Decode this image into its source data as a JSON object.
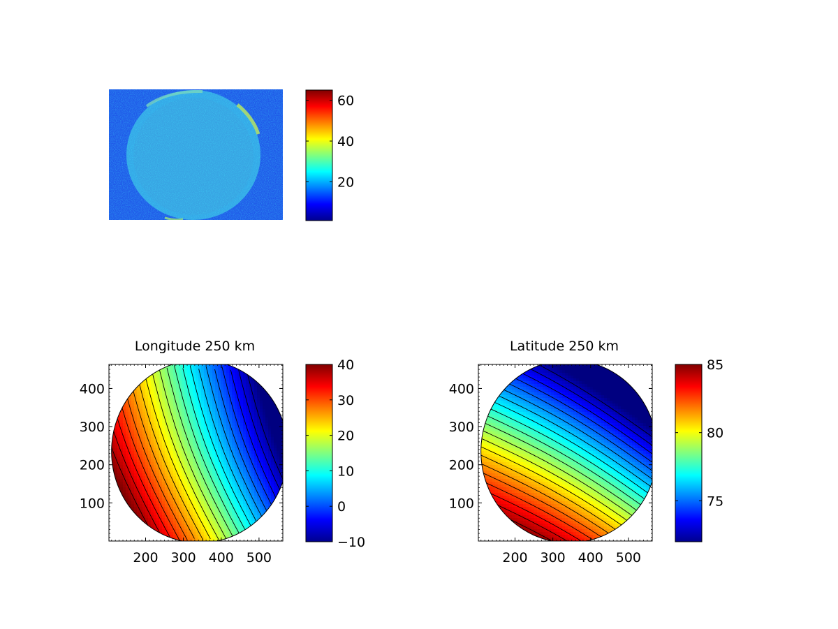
{
  "chart_data": [
    {
      "type": "heatmap",
      "title": "",
      "xlabel": "",
      "ylabel": "",
      "axes_visible": false,
      "description_values": "noisy blue/cyan image with a roughly circular disk brighter at the limb",
      "colormap": "jet",
      "clim": [
        1,
        65
      ],
      "colorbar": {
        "ticks": [
          20,
          40,
          60
        ],
        "tick_labels": [
          "20",
          "40",
          "60"
        ]
      }
    },
    {
      "type": "heatmap",
      "title": "Longitude 250 km",
      "xlabel": "",
      "ylabel": "",
      "xlim": [
        103,
        563
      ],
      "ylim": [
        0,
        463
      ],
      "x_ticks": [
        200,
        300,
        400,
        500
      ],
      "x_tick_labels": [
        "200",
        "300",
        "400",
        "500"
      ],
      "y_ticks": [
        100,
        200,
        300,
        400
      ],
      "y_tick_labels": [
        "100",
        "200",
        "300",
        "400"
      ],
      "colormap": "jet",
      "contour_lines": true,
      "clim": [
        -10,
        40
      ],
      "colorbar": {
        "ticks": [
          -10,
          0,
          10,
          20,
          30,
          40
        ],
        "tick_labels": [
          "−10",
          "0",
          "10",
          "20",
          "30",
          "40"
        ]
      }
    },
    {
      "type": "heatmap",
      "title": "Latitude 250 km",
      "xlabel": "",
      "ylabel": "",
      "xlim": [
        103,
        563
      ],
      "ylim": [
        0,
        463
      ],
      "x_ticks": [
        200,
        300,
        400,
        500
      ],
      "x_tick_labels": [
        "200",
        "300",
        "400",
        "500"
      ],
      "y_ticks": [
        100,
        200,
        300,
        400
      ],
      "y_tick_labels": [
        "100",
        "200",
        "300",
        "400"
      ],
      "colormap": "jet",
      "contour_lines": true,
      "clim": [
        72,
        85
      ],
      "colorbar": {
        "ticks": [
          75,
          80,
          85
        ],
        "tick_labels": [
          "75",
          "80",
          "85"
        ]
      }
    }
  ]
}
